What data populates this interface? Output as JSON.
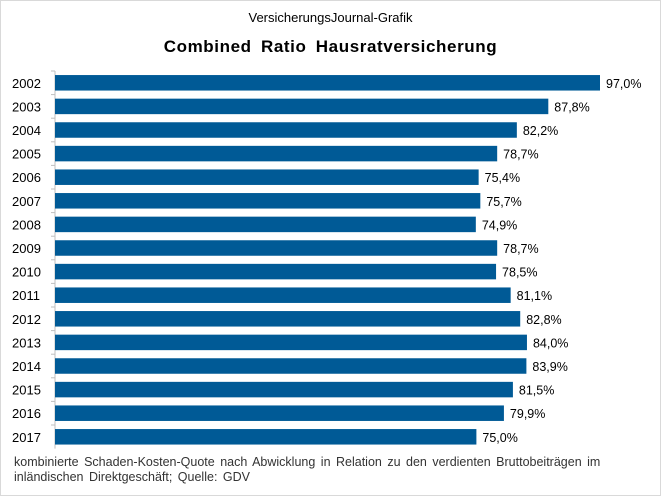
{
  "header": {
    "source": "VersicherungsJournal-Grafik"
  },
  "chart_data": {
    "type": "bar",
    "orientation": "horizontal",
    "title": "Combined Ratio Hausratversicherung",
    "categories": [
      "2002",
      "2003",
      "2004",
      "2005",
      "2006",
      "2007",
      "2008",
      "2009",
      "2010",
      "2011",
      "2012",
      "2013",
      "2014",
      "2015",
      "2016",
      "2017"
    ],
    "values": [
      97.0,
      87.8,
      82.2,
      78.7,
      75.4,
      75.7,
      74.9,
      78.7,
      78.5,
      81.1,
      82.8,
      84.0,
      83.9,
      81.5,
      79.9,
      75.0
    ],
    "value_labels": [
      "97,0%",
      "87,8%",
      "82,2%",
      "78,7%",
      "75,4%",
      "75,7%",
      "74,9%",
      "78,7%",
      "78,5%",
      "81,1%",
      "82,8%",
      "84,0%",
      "83,9%",
      "81,5%",
      "79,9%",
      "75,0%"
    ],
    "xlim": [
      0,
      97.0
    ],
    "unit": "%",
    "grid": false,
    "legend": "none",
    "bar_color": "#005a96"
  },
  "footnote": "kombinierte Schaden-Kosten-Quote nach Abwicklung in Relation zu den verdienten Bruttobeiträgen im inländischen Direktgeschäft; Quelle: GDV"
}
